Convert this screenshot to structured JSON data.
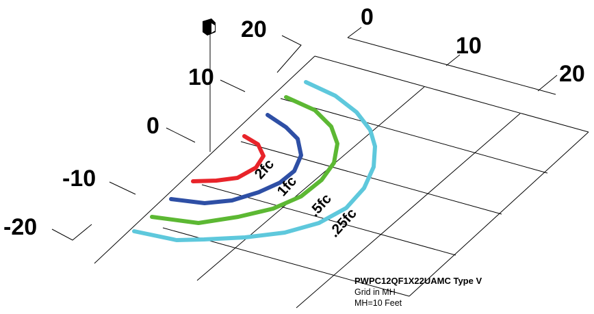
{
  "diagram": {
    "axis_labels_left": [
      "20",
      "10",
      "0",
      "-10",
      "-20"
    ],
    "axis_labels_right": [
      "0",
      "10",
      "20"
    ],
    "contours": [
      {
        "label": "2fc",
        "color": "#e8242a"
      },
      {
        "label": "1fc",
        "color": "#2e4fa5"
      },
      {
        "label": ".5fc",
        "color": "#5cb833"
      },
      {
        "label": ".25fc",
        "color": "#5ec8dc"
      }
    ],
    "luminaire_icon": "luminaire-icon",
    "caption": {
      "title": "PWPC12QF1X22UAMC Type V",
      "line1": "Grid in MH",
      "line2": "MH=10 Feet"
    }
  }
}
